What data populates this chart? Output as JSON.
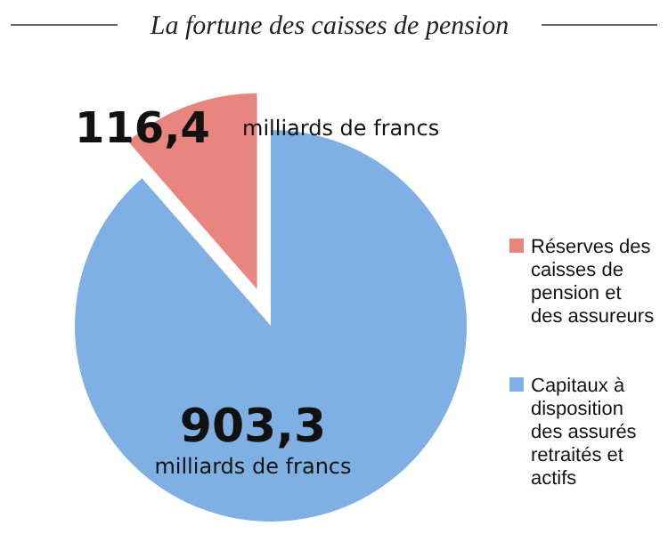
{
  "chart_data": {
    "type": "pie",
    "title": "La fortune des caisses de pension",
    "categories": [
      "Réserves des caisses de pension et des assureurs",
      "Capitaux à disposition des assurés retraités et actifs"
    ],
    "values": [
      116.4,
      903.3
    ],
    "colors": [
      "#e8857f",
      "#7fb0e3"
    ],
    "value_labels": [
      "116,4",
      "903,3"
    ],
    "annotations": [
      "milliards de francs",
      "milliards de francs"
    ],
    "legend": "right"
  }
}
